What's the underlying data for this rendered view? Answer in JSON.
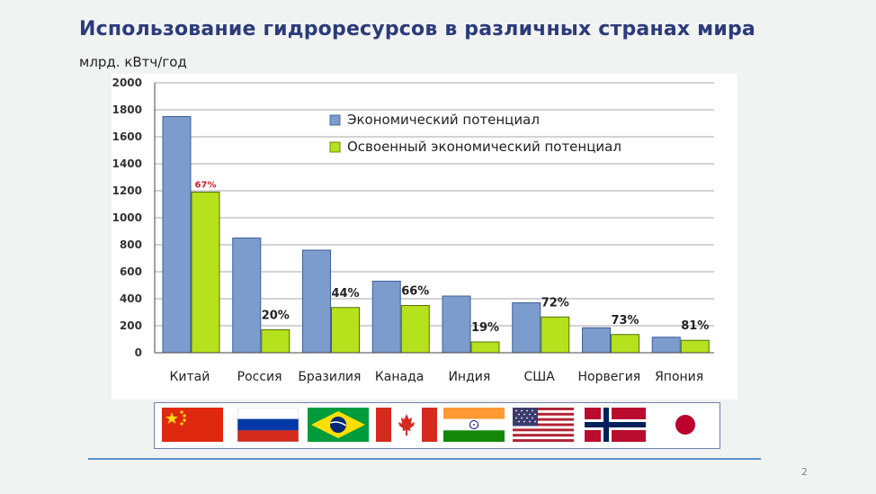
{
  "slide": {
    "title": "Использование гидроресурсов в различных странах мира",
    "subtitle": "млрд. кВтч/год",
    "page_number": "2"
  },
  "colors": {
    "economic": "#7b9ccc",
    "developed": "#b5e11d",
    "highlight_label": "#d0202b"
  },
  "chart_data": {
    "type": "bar",
    "categories": [
      "Китай",
      "Россия",
      "Бразилия",
      "Канада",
      "Индия",
      "США",
      "Норвегия",
      "Япония"
    ],
    "series": [
      {
        "name": "Экономический потенциал",
        "values": [
          1750,
          850,
          760,
          530,
          420,
          370,
          185,
          115
        ]
      },
      {
        "name": "Освоенный экономический потенциал",
        "values": [
          1190,
          170,
          335,
          350,
          80,
          265,
          135,
          92
        ]
      }
    ],
    "percent_labels": [
      "67%",
      "20%",
      "44%",
      "66%",
      "19%",
      "72%",
      "73%",
      "81%"
    ],
    "ylim": [
      0,
      2000
    ],
    "yticks": [
      0,
      200,
      400,
      600,
      800,
      1000,
      1200,
      1400,
      1600,
      1800,
      2000
    ],
    "grid": true,
    "legend_position": "top-right"
  },
  "flags": [
    "china-flag-icon",
    "russia-flag-icon",
    "brazil-flag-icon",
    "canada-flag-icon",
    "india-flag-icon",
    "usa-flag-icon",
    "norway-flag-icon",
    "japan-flag-icon"
  ]
}
